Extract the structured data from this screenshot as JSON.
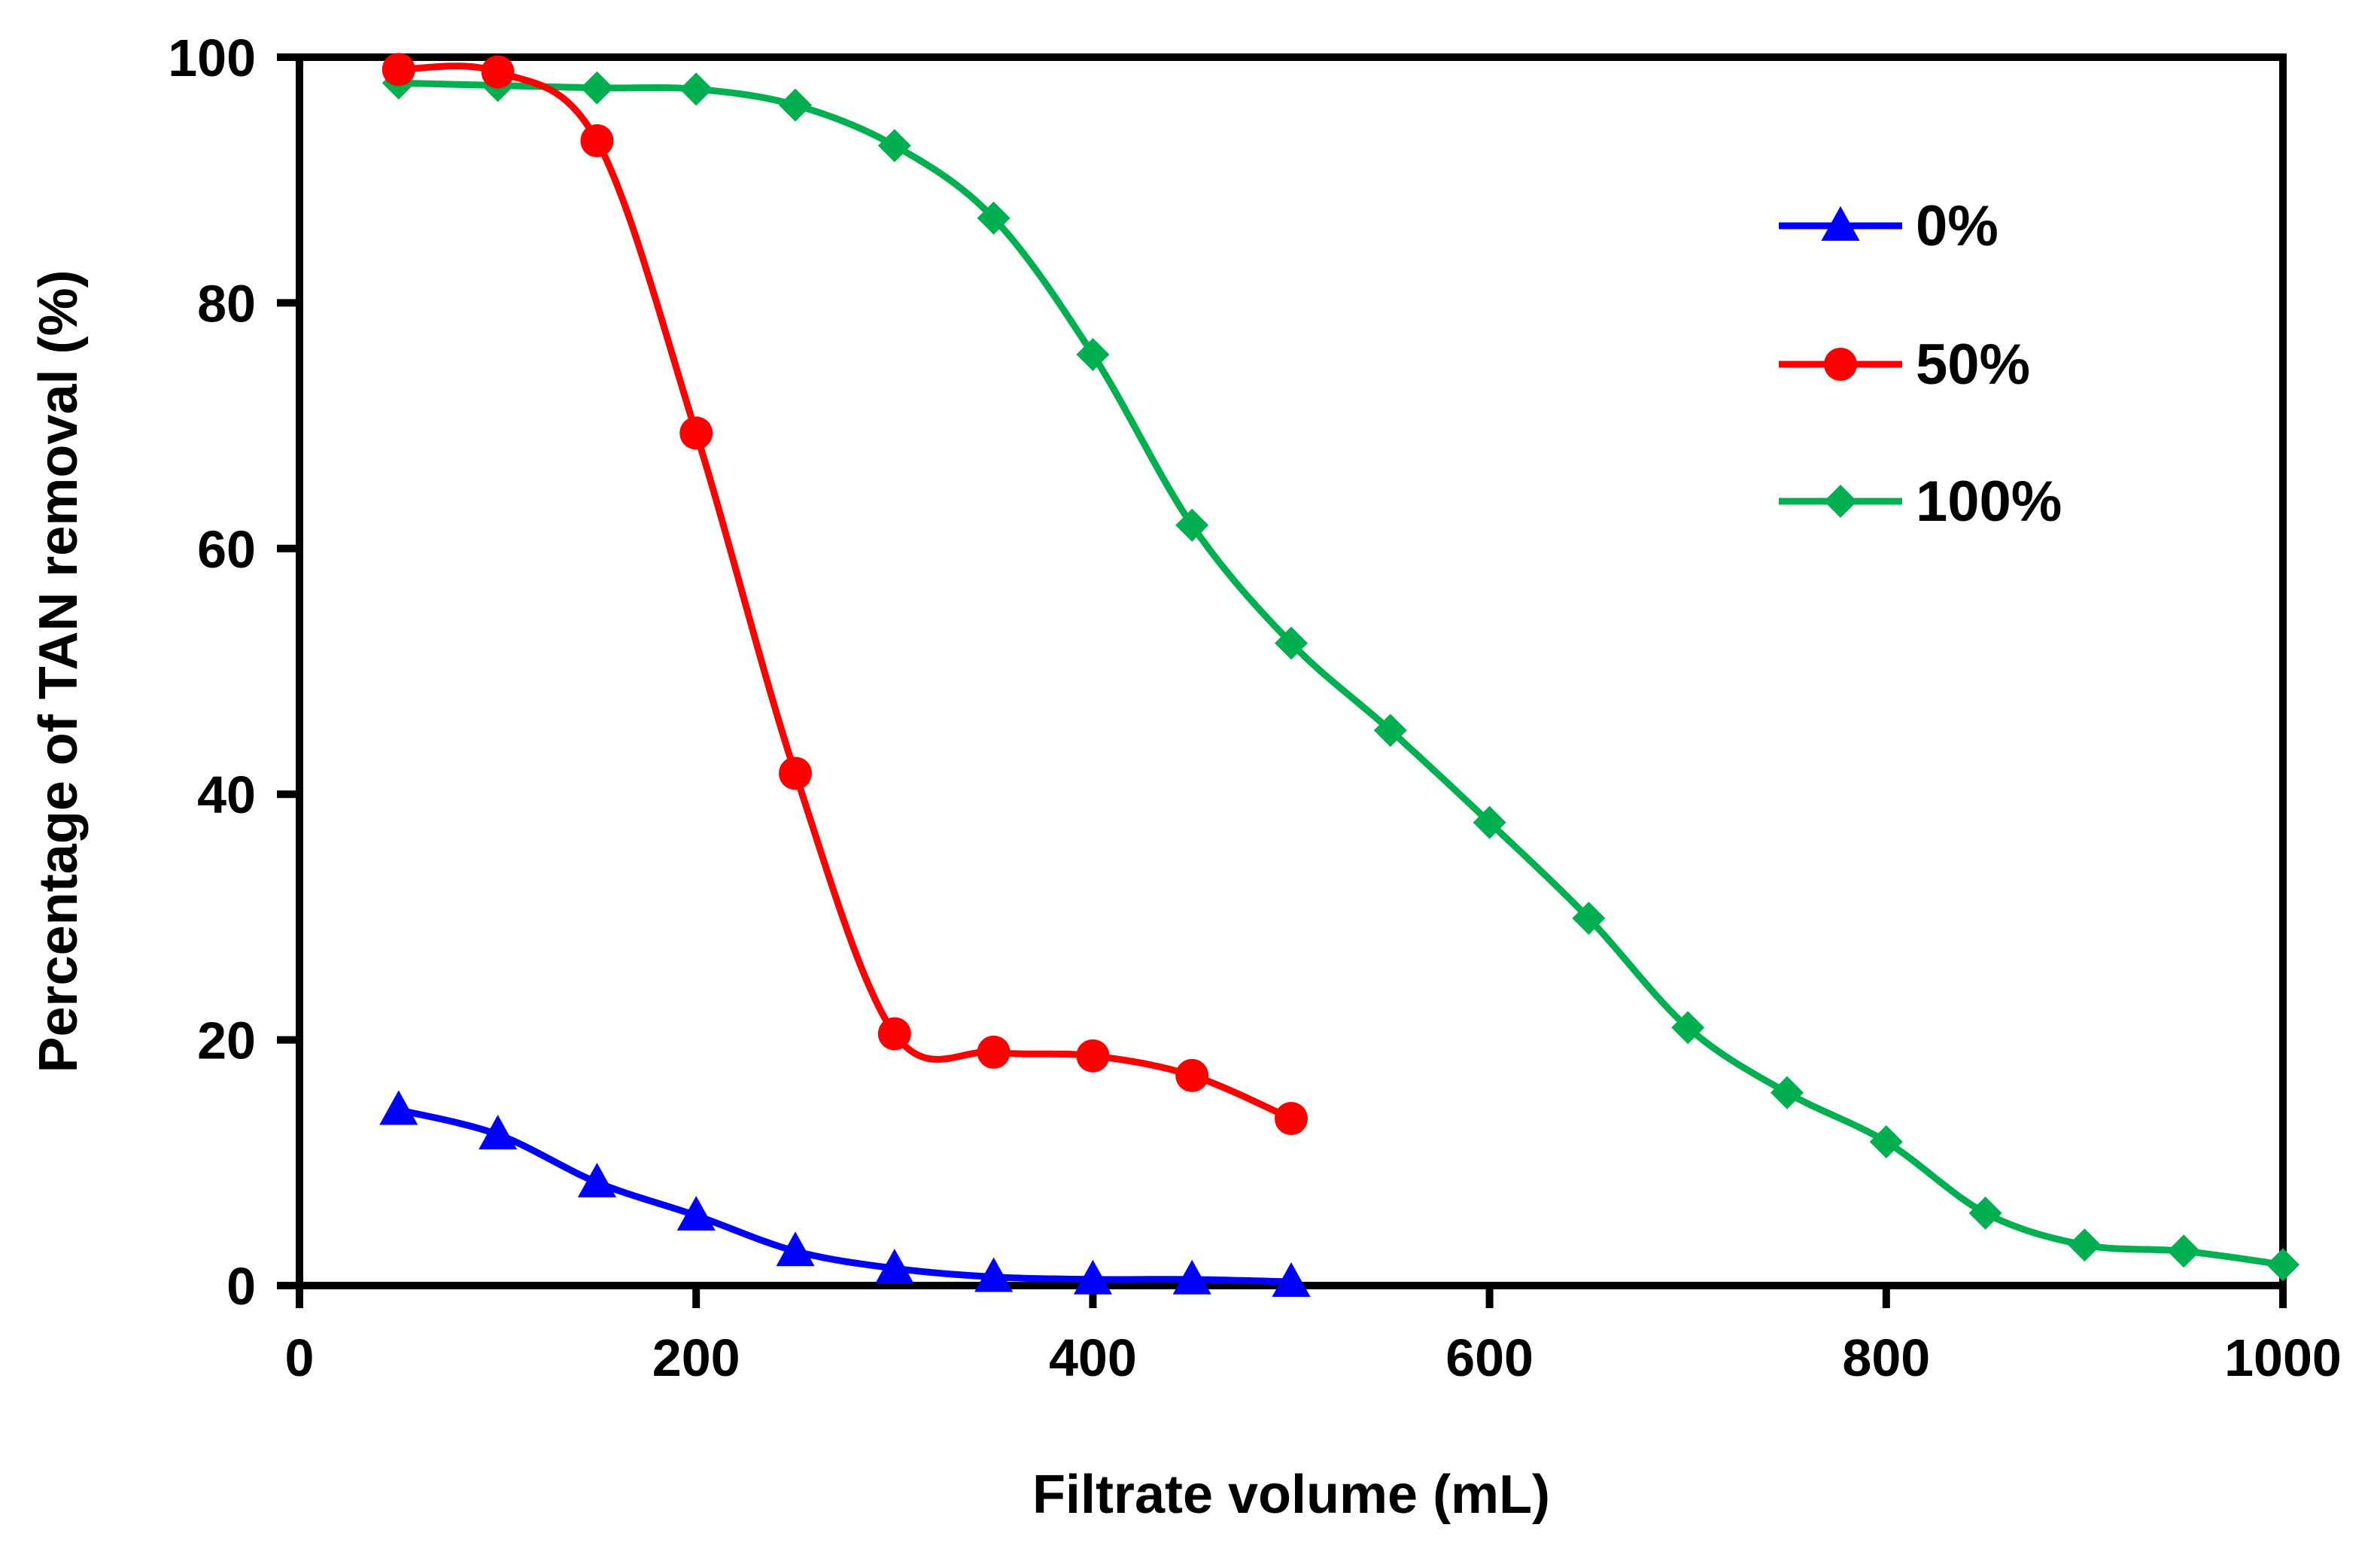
{
  "chart_data": {
    "type": "line",
    "title": "",
    "xlabel": "Filtrate volume (mL)",
    "ylabel": "Percentage of TAN removal (%)",
    "xlim": [
      0,
      1000
    ],
    "ylim": [
      0,
      100
    ],
    "x_ticks": [
      "0",
      "200",
      "400",
      "600",
      "800",
      "1000"
    ],
    "y_ticks": [
      "0",
      "20",
      "40",
      "60",
      "80",
      "100"
    ],
    "x_tick_values": [
      0,
      200,
      400,
      600,
      800,
      1000
    ],
    "y_tick_values": [
      0,
      20,
      40,
      60,
      80,
      100
    ],
    "grid": false,
    "legend_position": "top-right",
    "series": [
      {
        "name": "0%",
        "color": "#0000ff",
        "marker": "triangle",
        "x": [
          50,
          100,
          150,
          200,
          250,
          300,
          350,
          400,
          450,
          500
        ],
        "y": [
          14.3,
          12.3,
          8.4,
          5.7,
          2.8,
          1.4,
          0.7,
          0.5,
          0.5,
          0.3
        ]
      },
      {
        "name": "50%",
        "color": "#ff0000",
        "marker": "circle",
        "x": [
          50,
          100,
          150,
          200,
          250,
          300,
          350,
          400,
          450,
          500
        ],
        "y": [
          99.0,
          98.8,
          93.2,
          69.4,
          41.7,
          20.5,
          19.0,
          18.7,
          17.1,
          13.6
        ]
      },
      {
        "name": "100%",
        "color": "#00b050",
        "marker": "diamond",
        "x": [
          50,
          100,
          150,
          200,
          250,
          300,
          350,
          400,
          450,
          500,
          550,
          600,
          650,
          700,
          750,
          800,
          850,
          900,
          950,
          1000
        ],
        "y": [
          97.9,
          97.7,
          97.5,
          97.4,
          96.1,
          92.8,
          86.9,
          75.8,
          61.9,
          52.3,
          45.2,
          37.7,
          29.9,
          21.0,
          15.7,
          11.7,
          5.9,
          3.3,
          2.8,
          1.7
        ]
      }
    ]
  }
}
